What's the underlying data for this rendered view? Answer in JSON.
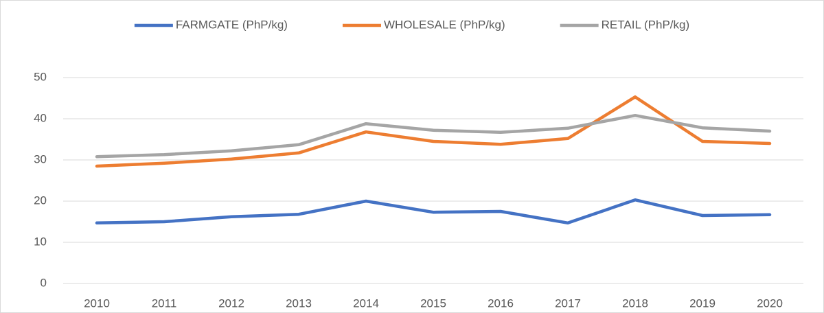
{
  "chart_data": {
    "type": "line",
    "categories": [
      "2010",
      "2011",
      "2012",
      "2013",
      "2014",
      "2015",
      "2016",
      "2017",
      "2018",
      "2019",
      "2020"
    ],
    "series": [
      {
        "name": "FARMGATE (PhP/kg)",
        "color": "#4472c4",
        "values": [
          14.7,
          15.0,
          16.2,
          16.8,
          20.0,
          17.3,
          17.5,
          14.7,
          20.3,
          16.5,
          16.7
        ]
      },
      {
        "name": "WHOLESALE (PhP/kg)",
        "color": "#ed7d31",
        "values": [
          28.5,
          29.2,
          30.2,
          31.7,
          36.8,
          34.5,
          33.8,
          35.2,
          45.3,
          34.5,
          34.0
        ]
      },
      {
        "name": "RETAIL (PhP/kg)",
        "color": "#a5a5a5",
        "values": [
          30.8,
          31.3,
          32.2,
          33.7,
          38.8,
          37.2,
          36.7,
          37.7,
          40.8,
          37.8,
          37.0
        ]
      }
    ],
    "ylim": [
      0,
      50
    ],
    "yticks": [
      0,
      10,
      20,
      30,
      40,
      50
    ],
    "grid": true,
    "legend": "top"
  }
}
